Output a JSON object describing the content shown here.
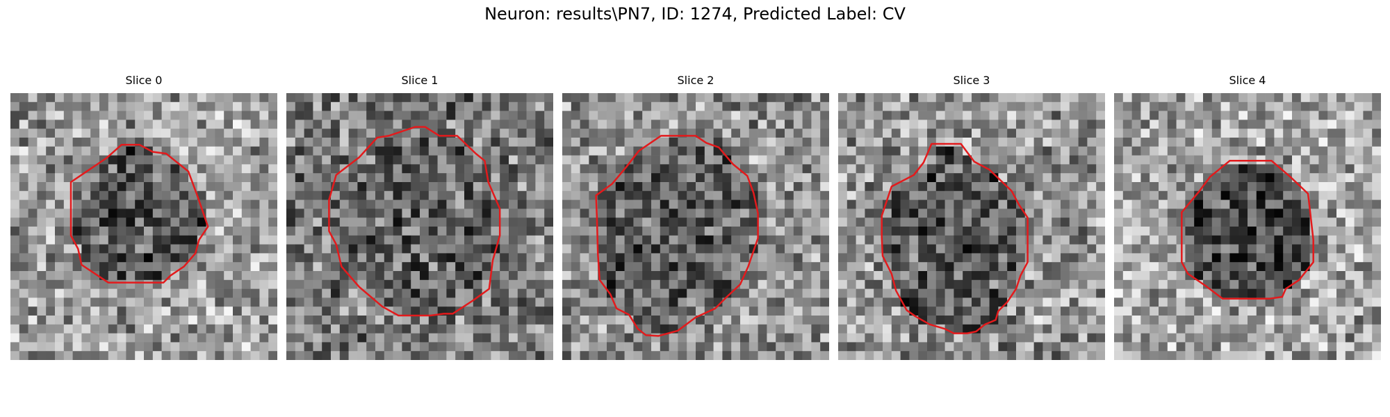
{
  "figure": {
    "title": "Neuron: results\\PN7, ID: 1274, Predicted Label: CV"
  },
  "panels": [
    {
      "title": "Slice 0",
      "seed": 11,
      "contour_color": "#e31a1c",
      "interior_darkness": 0.28,
      "exterior_brightness": 0.62
    },
    {
      "title": "Slice 1",
      "seed": 27,
      "contour_color": "#e31a1c",
      "interior_darkness": 0.18,
      "exterior_brightness": 0.48
    },
    {
      "title": "Slice 2",
      "seed": 43,
      "contour_color": "#e31a1c",
      "interior_darkness": 0.2,
      "exterior_brightness": 0.56
    },
    {
      "title": "Slice 3",
      "seed": 61,
      "contour_color": "#e31a1c",
      "interior_darkness": 0.24,
      "exterior_brightness": 0.58
    },
    {
      "title": "Slice 4",
      "seed": 79,
      "contour_color": "#e31a1c",
      "interior_darkness": 0.36,
      "exterior_brightness": 0.64
    }
  ],
  "colors": {
    "contour": "#e31a1c",
    "background": "#ffffff"
  }
}
